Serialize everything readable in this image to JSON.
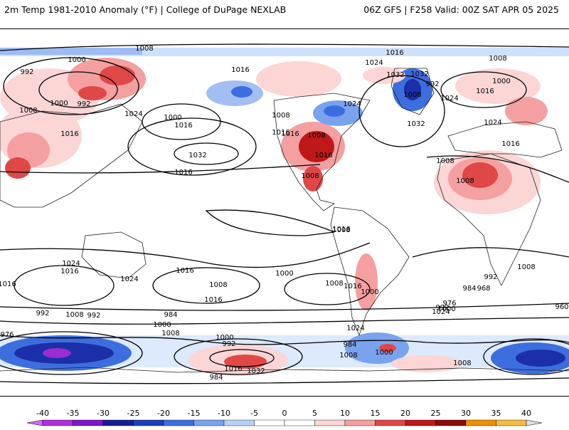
{
  "header": {
    "left_title": "2m Temp 1981-2010 Anomaly (°F) | College of DuPage NEXLAB",
    "right_title": "06Z GFS | F258 Valid: 00Z SAT APR 05 2025"
  },
  "colors": {
    "warm_light": "#fcd5d5",
    "warm_mid": "#f4a0a0",
    "warm_strong": "#e04848",
    "warm_deep": "#b01c1c",
    "cold_light": "#cfe0fb",
    "cold_mid": "#7aa3ee",
    "cold_strong": "#2f5fd6",
    "cold_deep": "#1b2fa8",
    "purple": "#9b2ccf",
    "isobar": "#000000",
    "coast": "#222222"
  },
  "isobar_labels": [
    "1008",
    "1000",
    "992",
    "1000",
    "992",
    "1008",
    "1016",
    "1016",
    "1024",
    "1000",
    "1016",
    "1032",
    "1016",
    "1016",
    "1008",
    "1016",
    "1008",
    "1016",
    "1032",
    "1024",
    "1016",
    "1024",
    "1032",
    "1032",
    "1008",
    "992",
    "1000",
    "1008",
    "1016",
    "1024",
    "1024",
    "1016",
    "1008",
    "1008",
    "1008",
    "1008",
    "1016",
    "1024",
    "1016",
    "1016",
    "1024",
    "1016",
    "1008",
    "1016",
    "1000",
    "1008",
    "1016",
    "1000",
    "992",
    "1024",
    "1000",
    "976",
    "984",
    "968",
    "992",
    "1008",
    "960",
    "976",
    "992",
    "1008",
    "992",
    "984",
    "1000",
    "1008",
    "1000",
    "992",
    "984",
    "1016",
    "1032",
    "1024",
    "984",
    "1008",
    "1000",
    "1008"
  ],
  "colorbar": {
    "ticks": [
      "-40",
      "-35",
      "-30",
      "-25",
      "-20",
      "-15",
      "-10",
      "-5",
      "0",
      "5",
      "10",
      "15",
      "20",
      "25",
      "30",
      "35",
      "40"
    ],
    "colors": [
      "#e060f0",
      "#b030e0",
      "#7a18c8",
      "#1b1b96",
      "#1f3fbf",
      "#3d6ee0",
      "#7aa3ee",
      "#b8d0f7",
      "#ffffff",
      "#ffffff",
      "#fcd5d5",
      "#f4a0a0",
      "#e04848",
      "#c01818",
      "#8c0a0a",
      "#f09000",
      "#f0c040"
    ]
  }
}
